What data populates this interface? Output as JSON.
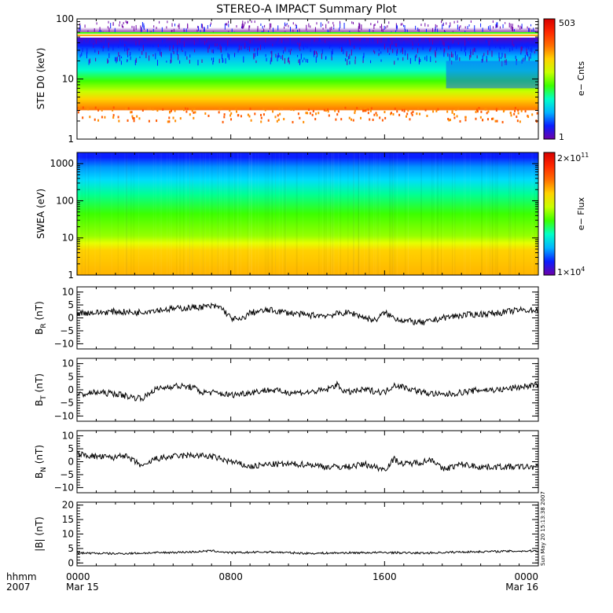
{
  "title": "STEREO-A IMPACT Summary Plot",
  "footer": {
    "unit_label": "hhmm",
    "year_label": "2007",
    "time_ticks": [
      "0000",
      "0800",
      "1600",
      "0000"
    ],
    "date_ticks": [
      "Mar 15",
      "",
      "",
      "Mar 16"
    ]
  },
  "timestamp": "Sun May 20 15:13:38 2007",
  "colors": {
    "axis": "#000000",
    "trace": "#000000",
    "colorscale": [
      "#6e00a8",
      "#0a1eff",
      "#00b4ff",
      "#00ffc8",
      "#3cff00",
      "#c8ff00",
      "#ffd200",
      "#ff6e00",
      "#ff2800",
      "#d70000"
    ]
  },
  "chart_data": [
    {
      "type": "heatmap",
      "ylabel": "STE D0 (keV)",
      "yscale": "log",
      "ylim": [
        1,
        100
      ],
      "yticks": [
        "1",
        "10",
        "100"
      ],
      "colorbar": {
        "label": "e− Cnts",
        "max_label": "503",
        "min_label": "1",
        "range": [
          1,
          503
        ],
        "scale": "log"
      },
      "description_values": {
        "energy_band_peak_keV": [
          2,
          5
        ],
        "strong_line_keV": [
          50,
          60
        ]
      }
    },
    {
      "type": "heatmap",
      "ylabel": "SWEA (eV)",
      "yscale": "log",
      "ylim": [
        1,
        2000
      ],
      "yticks": [
        "1",
        "10",
        "100",
        "1000"
      ],
      "colorbar": {
        "label": "e− Flux",
        "max_label": "2×10",
        "max_exp": "11",
        "min_label": "1×10",
        "min_exp": "4",
        "range": [
          10000,
          200000000000
        ],
        "scale": "log"
      }
    },
    {
      "type": "line",
      "ylabel_main": "B",
      "ylabel_sub": "R",
      "ylabel_unit": " (nT)",
      "ylim": [
        -12,
        12
      ],
      "yticks": [
        "10",
        "5",
        "0",
        "−5",
        "−10"
      ],
      "ytick_values": [
        10,
        5,
        0,
        -5,
        -10
      ],
      "keyframes": [
        [
          0,
          2
        ],
        [
          1,
          2
        ],
        [
          2,
          2.5
        ],
        [
          3,
          2
        ],
        [
          4,
          3
        ],
        [
          5,
          3.5
        ],
        [
          6,
          4
        ],
        [
          7,
          4.5
        ],
        [
          7.5,
          4
        ],
        [
          8,
          0
        ],
        [
          8.5,
          -1
        ],
        [
          9,
          2
        ],
        [
          10,
          3
        ],
        [
          11,
          2
        ],
        [
          12,
          1
        ],
        [
          13,
          1
        ],
        [
          14,
          2
        ],
        [
          14.5,
          1.5
        ],
        [
          15,
          0
        ],
        [
          15.5,
          -1
        ],
        [
          16,
          2
        ],
        [
          16.5,
          0
        ],
        [
          17,
          -1
        ],
        [
          18,
          -2
        ],
        [
          19,
          0
        ],
        [
          20,
          1
        ],
        [
          21,
          1.5
        ],
        [
          22,
          2
        ],
        [
          23,
          3
        ],
        [
          24,
          3
        ]
      ]
    },
    {
      "type": "line",
      "ylabel_main": "B",
      "ylabel_sub": "T",
      "ylabel_unit": " (nT)",
      "ylim": [
        -12,
        12
      ],
      "yticks": [
        "10",
        "5",
        "0",
        "−5",
        "−10"
      ],
      "ytick_values": [
        10,
        5,
        0,
        -5,
        -10
      ],
      "keyframes": [
        [
          0,
          -2
        ],
        [
          1,
          -1
        ],
        [
          2,
          -1.5
        ],
        [
          3,
          -3
        ],
        [
          3.5,
          -3
        ],
        [
          4,
          0
        ],
        [
          5,
          1.5
        ],
        [
          6,
          1
        ],
        [
          6.5,
          -1
        ],
        [
          7,
          -1
        ],
        [
          8,
          -2
        ],
        [
          9,
          -1
        ],
        [
          10,
          0
        ],
        [
          11,
          -1
        ],
        [
          12,
          -1
        ],
        [
          13,
          0
        ],
        [
          13.5,
          2
        ],
        [
          14,
          -1
        ],
        [
          15,
          0
        ],
        [
          16,
          -1
        ],
        [
          16.5,
          2
        ],
        [
          17,
          1
        ],
        [
          18,
          -1
        ],
        [
          19,
          -2
        ],
        [
          20,
          -1
        ],
        [
          21,
          0
        ],
        [
          22,
          0
        ],
        [
          23,
          1
        ],
        [
          24,
          2
        ]
      ]
    },
    {
      "type": "line",
      "ylabel_main": "B",
      "ylabel_sub": "N",
      "ylabel_unit": " (nT)",
      "ylim": [
        -12,
        12
      ],
      "yticks": [
        "10",
        "5",
        "0",
        "−5",
        "−10"
      ],
      "ytick_values": [
        10,
        5,
        0,
        -5,
        -10
      ],
      "keyframes": [
        [
          0,
          3
        ],
        [
          1,
          2
        ],
        [
          2,
          1.5
        ],
        [
          2.3,
          3
        ],
        [
          3,
          0
        ],
        [
          3.5,
          -2
        ],
        [
          4,
          1
        ],
        [
          5,
          2
        ],
        [
          6,
          2.5
        ],
        [
          7,
          2
        ],
        [
          8,
          0
        ],
        [
          9,
          -2
        ],
        [
          10,
          -1
        ],
        [
          11,
          -1
        ],
        [
          12,
          -1
        ],
        [
          13,
          -2
        ],
        [
          14,
          -2
        ],
        [
          15,
          -1
        ],
        [
          16,
          -3
        ],
        [
          16.5,
          1
        ],
        [
          17,
          -1
        ],
        [
          18,
          0
        ],
        [
          18.5,
          1
        ],
        [
          19,
          -3
        ],
        [
          20,
          -1
        ],
        [
          21,
          -2
        ],
        [
          22,
          -2
        ],
        [
          23,
          -2
        ],
        [
          24,
          -2
        ]
      ]
    },
    {
      "type": "line",
      "ylabel_main": "|B| (nT)",
      "ylim": [
        -1,
        21
      ],
      "yticks": [
        "20",
        "15",
        "10",
        "5",
        "0"
      ],
      "ytick_values": [
        20,
        15,
        10,
        5,
        0
      ],
      "keyframes": [
        [
          0,
          3.5
        ],
        [
          2,
          3.2
        ],
        [
          4,
          3.5
        ],
        [
          6,
          3.8
        ],
        [
          7,
          4.2
        ],
        [
          8,
          3.5
        ],
        [
          10,
          3.8
        ],
        [
          12,
          3.3
        ],
        [
          14,
          3.5
        ],
        [
          16,
          3.6
        ],
        [
          18,
          3.4
        ],
        [
          20,
          3.8
        ],
        [
          22,
          4.0
        ],
        [
          24,
          4.2
        ]
      ]
    }
  ]
}
